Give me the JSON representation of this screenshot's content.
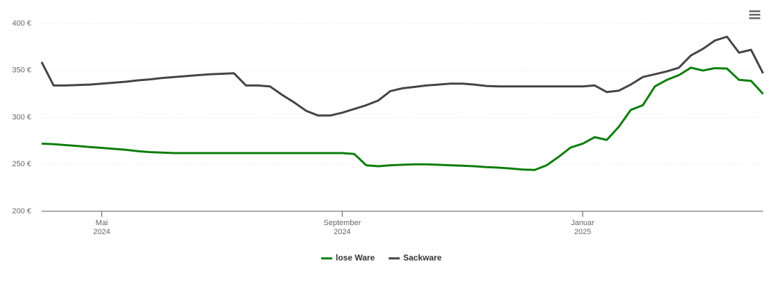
{
  "chart_data": {
    "type": "line",
    "categories": [
      null,
      null,
      null,
      null,
      null,
      "Mai\n2024",
      null,
      null,
      null,
      null,
      null,
      null,
      null,
      null,
      null,
      null,
      null,
      null,
      null,
      null,
      null,
      null,
      null,
      null,
      null,
      "September\n2024",
      null,
      null,
      null,
      null,
      null,
      null,
      null,
      null,
      null,
      null,
      null,
      null,
      null,
      null,
      null,
      null,
      null,
      null,
      null,
      "Januar\n2025",
      null,
      null,
      null,
      null,
      null,
      null,
      null,
      null,
      null,
      null,
      null,
      null,
      null,
      null,
      null
    ],
    "series": [
      {
        "name": "lose Ware",
        "color": "#0a7d0a",
        "values": [
          272,
          271.5,
          270.5,
          269.5,
          268.5,
          267.5,
          266.5,
          265.5,
          264,
          263,
          262.5,
          262,
          262,
          262,
          262,
          262,
          262,
          262,
          262,
          262,
          262,
          262,
          262,
          262,
          262,
          262,
          261,
          249,
          248,
          249,
          249.5,
          250,
          250,
          249.5,
          249,
          248.5,
          248,
          247,
          246.5,
          245.5,
          244.5,
          244,
          249,
          258,
          268,
          272,
          279,
          276,
          290,
          308,
          313,
          333,
          340,
          345,
          353,
          350,
          352.5,
          352,
          340,
          339,
          325
        ]
      },
      {
        "name": "Sackware",
        "color": "#434348",
        "values": [
          359,
          334,
          334,
          334.5,
          335,
          336,
          337,
          338,
          339.5,
          340.5,
          342,
          343,
          344,
          345,
          346,
          346.5,
          347,
          334,
          334,
          333,
          324,
          316,
          307,
          302,
          302,
          305,
          309,
          313,
          318,
          328,
          331,
          332.5,
          334,
          335,
          336,
          336,
          335,
          333.5,
          333,
          333,
          333,
          333,
          333,
          333,
          333,
          333,
          334,
          327,
          328.5,
          335,
          343,
          346,
          349,
          353,
          366,
          373,
          382,
          386,
          369,
          372,
          347
        ]
      }
    ],
    "ylim": [
      200,
      400
    ],
    "yticks": [
      {
        "value": 200,
        "label": "200 €"
      },
      {
        "value": 250,
        "label": "250 €"
      },
      {
        "value": 300,
        "label": "300 €"
      },
      {
        "value": 350,
        "label": "350 €"
      },
      {
        "value": 400,
        "label": "400 €"
      }
    ],
    "grid": true,
    "legend": "bottom"
  }
}
